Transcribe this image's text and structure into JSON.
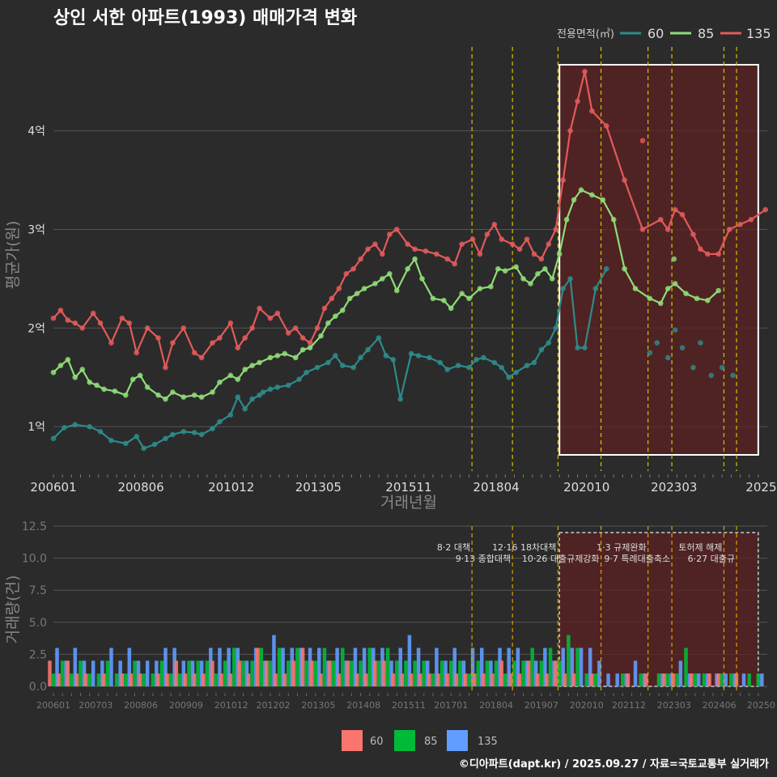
{
  "title": "상인 서한 아파트(1993) 매매가격 변화",
  "footer": "©디아파트(dapt.kr) / 2025.09.27 / 자료=국토교통부 실거래가",
  "colors": {
    "background": "#2b2b2b",
    "grid": "#555555",
    "s60": "#2e8b8b",
    "s85": "#8fdc78",
    "s135": "#e35a5a",
    "bar60": "#f8766d",
    "bar85": "#00ba38",
    "bar135": "#619cff",
    "policy": "#d4c400",
    "highlight_fill": "#5c2222",
    "title": "#ffffff"
  },
  "chart_data": [
    {
      "type": "line",
      "title": "상인 서한 아파트(1993) 매매가격 변화",
      "xlabel": "거래년월",
      "ylabel": "평균가(원)",
      "x_range": [
        2006.0,
        2025.75
      ],
      "ylim": [
        0.55,
        4.85
      ],
      "y_ticks": [
        1,
        2,
        3,
        4
      ],
      "y_tick_labels": [
        "1억",
        "2억",
        "3억",
        "4억"
      ],
      "x_ticks": [
        2006.0,
        2008.42,
        2010.92,
        2013.33,
        2015.83,
        2018.25,
        2020.75,
        2023.17,
        2025.58
      ],
      "x_tick_labels": [
        "200601",
        "200806",
        "201012",
        "201305",
        "201511",
        "201804",
        "202010",
        "202303",
        "2025"
      ],
      "legend_title": "전용면적(㎡)",
      "legend_position": "top-right",
      "highlight_range": [
        2020.0,
        2025.5
      ],
      "policy_lines": [
        2017.58,
        2018.7,
        2019.96,
        2021.15,
        2022.45,
        2023.11,
        2024.55,
        2024.9
      ],
      "series": [
        {
          "name": "60",
          "x": [
            2006.0,
            2006.3,
            2006.6,
            2007.0,
            2007.3,
            2007.6,
            2008.0,
            2008.3,
            2008.5,
            2008.8,
            2009.1,
            2009.3,
            2009.6,
            2009.9,
            2010.1,
            2010.4,
            2010.6,
            2010.9,
            2011.1,
            2011.3,
            2011.5,
            2011.7,
            2011.8,
            2012.0,
            2012.2,
            2012.5,
            2012.8,
            2013.0,
            2013.3,
            2013.6,
            2013.8,
            2014.0,
            2014.3,
            2014.5,
            2014.7,
            2015.0,
            2015.2,
            2015.4,
            2015.6,
            2015.9,
            2016.1,
            2016.4,
            2016.7,
            2016.9,
            2017.2,
            2017.5,
            2017.7,
            2017.9,
            2018.2,
            2018.4,
            2018.6,
            2018.8,
            2019.1,
            2019.3,
            2019.5,
            2019.7,
            2019.9,
            2020.1,
            2020.3,
            2020.5,
            2020.7,
            2021.0,
            2021.3
          ],
          "values": [
            0.88,
            0.99,
            1.02,
            1.0,
            0.95,
            0.86,
            0.83,
            0.9,
            0.78,
            0.82,
            0.88,
            0.92,
            0.95,
            0.94,
            0.92,
            0.98,
            1.05,
            1.12,
            1.3,
            1.18,
            1.28,
            1.32,
            1.35,
            1.38,
            1.4,
            1.42,
            1.48,
            1.55,
            1.6,
            1.65,
            1.72,
            1.62,
            1.6,
            1.7,
            1.78,
            1.9,
            1.72,
            1.68,
            1.28,
            1.74,
            1.72,
            1.7,
            1.65,
            1.58,
            1.62,
            1.6,
            1.68,
            1.7,
            1.65,
            1.6,
            1.5,
            1.55,
            1.62,
            1.65,
            1.78,
            1.85,
            2.0,
            2.4,
            2.5,
            1.8,
            1.8,
            2.4,
            2.6
          ],
          "scatter_x": [
            2022.5,
            2022.7,
            2023.0,
            2023.2,
            2023.4,
            2023.7,
            2023.9,
            2024.2,
            2024.5,
            2024.8
          ],
          "scatter_values": [
            1.75,
            1.85,
            1.7,
            1.98,
            1.8,
            1.6,
            1.85,
            1.52,
            1.6,
            1.52
          ]
        },
        {
          "name": "85",
          "x": [
            2006.0,
            2006.2,
            2006.4,
            2006.6,
            2006.8,
            2007.0,
            2007.2,
            2007.4,
            2007.7,
            2008.0,
            2008.2,
            2008.4,
            2008.6,
            2008.9,
            2009.1,
            2009.3,
            2009.6,
            2009.9,
            2010.1,
            2010.4,
            2010.6,
            2010.9,
            2011.1,
            2011.3,
            2011.5,
            2011.7,
            2012.0,
            2012.2,
            2012.4,
            2012.7,
            2012.9,
            2013.1,
            2013.4,
            2013.6,
            2013.8,
            2014.0,
            2014.2,
            2014.4,
            2014.6,
            2014.9,
            2015.1,
            2015.3,
            2015.5,
            2015.8,
            2016.0,
            2016.2,
            2016.5,
            2016.8,
            2017.0,
            2017.3,
            2017.5,
            2017.8,
            2018.1,
            2018.3,
            2018.5,
            2018.8,
            2019.0,
            2019.2,
            2019.4,
            2019.6,
            2019.8,
            2020.0,
            2020.2,
            2020.4,
            2020.6,
            2020.9,
            2021.2,
            2021.5,
            2021.8,
            2022.1,
            2022.5,
            2022.8,
            2023.0,
            2023.2,
            2023.5,
            2023.8,
            2024.1,
            2024.4
          ],
          "values": [
            1.55,
            1.62,
            1.68,
            1.5,
            1.58,
            1.45,
            1.42,
            1.38,
            1.36,
            1.32,
            1.48,
            1.52,
            1.4,
            1.32,
            1.28,
            1.35,
            1.3,
            1.32,
            1.3,
            1.35,
            1.45,
            1.52,
            1.48,
            1.58,
            1.62,
            1.65,
            1.7,
            1.72,
            1.74,
            1.7,
            1.78,
            1.8,
            1.92,
            2.05,
            2.12,
            2.18,
            2.3,
            2.35,
            2.4,
            2.45,
            2.5,
            2.55,
            2.38,
            2.6,
            2.7,
            2.5,
            2.3,
            2.28,
            2.2,
            2.35,
            2.3,
            2.4,
            2.42,
            2.6,
            2.58,
            2.62,
            2.5,
            2.45,
            2.55,
            2.6,
            2.5,
            2.75,
            3.1,
            3.3,
            3.4,
            3.35,
            3.3,
            3.1,
            2.6,
            2.4,
            2.3,
            2.25,
            2.4,
            2.45,
            2.35,
            2.3,
            2.28,
            2.38
          ],
          "scatter_x": [
            2023.17
          ],
          "scatter_values": [
            2.7
          ]
        },
        {
          "name": "135",
          "x": [
            2006.0,
            2006.2,
            2006.4,
            2006.6,
            2006.8,
            2007.1,
            2007.3,
            2007.6,
            2007.9,
            2008.1,
            2008.3,
            2008.6,
            2008.9,
            2009.1,
            2009.3,
            2009.6,
            2009.9,
            2010.1,
            2010.4,
            2010.6,
            2010.9,
            2011.1,
            2011.3,
            2011.5,
            2011.7,
            2012.0,
            2012.2,
            2012.5,
            2012.7,
            2012.9,
            2013.1,
            2013.3,
            2013.5,
            2013.7,
            2013.9,
            2014.1,
            2014.3,
            2014.5,
            2014.7,
            2014.9,
            2015.1,
            2015.3,
            2015.5,
            2015.8,
            2016.0,
            2016.3,
            2016.6,
            2016.9,
            2017.1,
            2017.3,
            2017.6,
            2017.8,
            2018.0,
            2018.2,
            2018.4,
            2018.7,
            2018.9,
            2019.1,
            2019.3,
            2019.5,
            2019.7,
            2019.9,
            2020.1,
            2020.3,
            2020.5,
            2020.7,
            2020.9,
            2021.3,
            2021.8,
            2022.3,
            2022.8,
            2023.0,
            2023.2,
            2023.4,
            2023.7,
            2023.9,
            2024.1,
            2024.4,
            2024.7,
            2025.0,
            2025.3,
            2025.7
          ],
          "values": [
            2.1,
            2.18,
            2.08,
            2.05,
            2.0,
            2.15,
            2.05,
            1.85,
            2.1,
            2.05,
            1.75,
            2.0,
            1.9,
            1.6,
            1.85,
            2.0,
            1.75,
            1.7,
            1.85,
            1.9,
            2.05,
            1.8,
            1.9,
            2.0,
            2.2,
            2.1,
            2.15,
            1.95,
            2.0,
            1.9,
            1.85,
            2.0,
            2.2,
            2.3,
            2.4,
            2.55,
            2.6,
            2.7,
            2.8,
            2.85,
            2.75,
            2.95,
            3.0,
            2.85,
            2.8,
            2.78,
            2.75,
            2.7,
            2.65,
            2.85,
            2.9,
            2.75,
            2.95,
            3.05,
            2.9,
            2.85,
            2.8,
            2.9,
            2.75,
            2.7,
            2.85,
            3.0,
            3.5,
            4.0,
            4.3,
            4.6,
            4.2,
            4.05,
            3.5,
            3.0,
            3.1,
            3.0,
            3.2,
            3.15,
            2.95,
            2.8,
            2.75,
            2.75,
            3.0,
            3.05,
            3.1,
            3.2
          ],
          "scatter_x": [
            2022.3
          ],
          "scatter_values": [
            3.9
          ]
        }
      ]
    },
    {
      "type": "bar",
      "ylabel": "거래량(건)",
      "ylim": [
        0,
        12.5
      ],
      "y_ticks": [
        0,
        2.5,
        5,
        7.5,
        10,
        12.5
      ],
      "y_tick_labels": [
        "0.0",
        "2.5",
        "5.0",
        "7.5",
        "10.0",
        "12.5"
      ],
      "x_range": [
        2006.0,
        2025.75
      ],
      "x_ticks": [
        2006.0,
        2007.17,
        2008.42,
        2009.67,
        2010.92,
        2012.08,
        2013.33,
        2014.58,
        2015.83,
        2017.0,
        2018.25,
        2019.5,
        2020.75,
        2021.92,
        2023.17,
        2024.42,
        2025.58
      ],
      "x_tick_labels": [
        "200601",
        "200703",
        "200806",
        "200909",
        "201012",
        "201202",
        "201305",
        "201408",
        "201511",
        "201701",
        "201804",
        "201907",
        "202010",
        "202112",
        "202303",
        "202406",
        "20250"
      ],
      "legend_items": [
        "60",
        "85",
        "135"
      ],
      "policy_notes": [
        {
          "x": 2017.58,
          "label": "8·2 대책"
        },
        {
          "x": 2018.7,
          "label": "9·13 종합대책"
        },
        {
          "x": 2019.96,
          "label": "12·16 18차대책"
        },
        {
          "x": 2021.15,
          "label": "10·26 대출규제강화"
        },
        {
          "x": 2022.45,
          "label": "1·3 규제완화"
        },
        {
          "x": 2023.11,
          "label": "9·7 특례대출축소"
        },
        {
          "x": 2024.55,
          "label": "토허제 해제"
        },
        {
          "x": 2024.9,
          "label": "6·27 대출규"
        }
      ],
      "months": [
        2006.0,
        2006.25,
        2006.5,
        2006.75,
        2007.0,
        2007.25,
        2007.5,
        2007.75,
        2008.0,
        2008.25,
        2008.5,
        2008.75,
        2009.0,
        2009.25,
        2009.5,
        2009.75,
        2010.0,
        2010.25,
        2010.5,
        2010.75,
        2011.0,
        2011.25,
        2011.5,
        2011.75,
        2012.0,
        2012.25,
        2012.5,
        2012.75,
        2013.0,
        2013.25,
        2013.5,
        2013.75,
        2014.0,
        2014.25,
        2014.5,
        2014.75,
        2015.0,
        2015.25,
        2015.5,
        2015.75,
        2016.0,
        2016.25,
        2016.5,
        2016.75,
        2017.0,
        2017.25,
        2017.5,
        2017.75,
        2018.0,
        2018.25,
        2018.5,
        2018.75,
        2019.0,
        2019.25,
        2019.5,
        2019.75,
        2020.0,
        2020.25,
        2020.5,
        2020.75,
        2021.0,
        2021.25,
        2021.5,
        2021.75,
        2022.0,
        2022.25,
        2022.5,
        2022.75,
        2023.0,
        2023.25,
        2023.5,
        2023.75,
        2024.0,
        2024.25,
        2024.5,
        2024.75,
        2025.0,
        2025.25,
        2025.5
      ],
      "series": [
        {
          "name": "60",
          "values": [
            2,
            1,
            2,
            1,
            1,
            0,
            1,
            0,
            1,
            1,
            1,
            0,
            1,
            1,
            2,
            1,
            1,
            1,
            2,
            1,
            1,
            2,
            1,
            3,
            2,
            1,
            1,
            2,
            3,
            2,
            1,
            2,
            1,
            2,
            1,
            1,
            2,
            2,
            1,
            1,
            1,
            1,
            1,
            1,
            1,
            1,
            1,
            1,
            1,
            1,
            2,
            1,
            1,
            2,
            1,
            1,
            2,
            1,
            1,
            0,
            1,
            0,
            0,
            0,
            1,
            0,
            1,
            0,
            1,
            1,
            0,
            1,
            0,
            1,
            1,
            0,
            1,
            0,
            0
          ]
        },
        {
          "name": "85",
          "values": [
            1,
            2,
            1,
            2,
            1,
            1,
            2,
            1,
            1,
            2,
            1,
            1,
            2,
            1,
            1,
            2,
            2,
            2,
            1,
            2,
            3,
            2,
            2,
            3,
            2,
            3,
            2,
            3,
            2,
            2,
            3,
            2,
            3,
            2,
            2,
            3,
            2,
            3,
            2,
            2,
            2,
            2,
            1,
            2,
            2,
            2,
            1,
            2,
            2,
            2,
            1,
            2,
            2,
            3,
            2,
            3,
            2,
            4,
            3,
            1,
            1,
            0,
            0,
            1,
            0,
            1,
            0,
            1,
            1,
            1,
            3,
            1,
            1,
            0,
            1,
            1,
            0,
            1,
            1
          ]
        },
        {
          "name": "135",
          "values": [
            3,
            2,
            3,
            2,
            2,
            2,
            3,
            2,
            3,
            2,
            2,
            2,
            3,
            3,
            2,
            2,
            2,
            3,
            3,
            3,
            3,
            2,
            3,
            2,
            4,
            3,
            3,
            3,
            3,
            3,
            2,
            3,
            2,
            3,
            3,
            3,
            3,
            2,
            3,
            4,
            3,
            2,
            3,
            2,
            3,
            2,
            3,
            3,
            2,
            3,
            3,
            3,
            2,
            2,
            3,
            2,
            3,
            3,
            3,
            3,
            2,
            1,
            1,
            1,
            2,
            1,
            0,
            1,
            1,
            2,
            1,
            1,
            1,
            1,
            1,
            1,
            1,
            0,
            1
          ]
        }
      ]
    }
  ]
}
